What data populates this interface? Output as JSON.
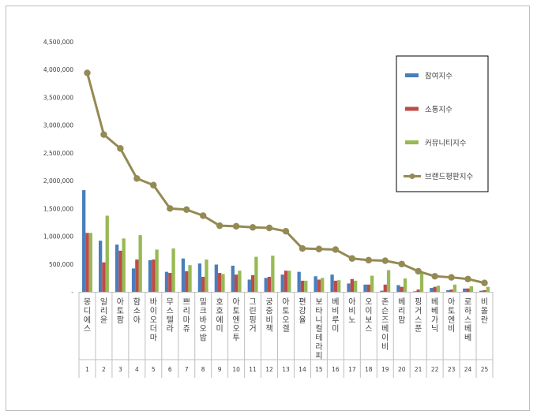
{
  "chart_data": {
    "type": "bar",
    "title": "",
    "xlabel": "",
    "ylabel": "",
    "ylim": [
      0,
      4500000
    ],
    "yticks": [
      0,
      500000,
      1000000,
      1500000,
      2000000,
      2500000,
      3000000,
      3500000,
      4000000,
      4500000
    ],
    "ytick_labels": [
      "-",
      "500,000",
      "1,000,000",
      "1,500,000",
      "2,000,000",
      "2,500,000",
      "3,000,000",
      "3,500,000",
      "4,000,000",
      "4,500,000"
    ],
    "grid": false,
    "legend_position": "top-right",
    "categories": [
      "몽디에스",
      "일리윤",
      "아토팜",
      "함소아",
      "바이오더마",
      "무스텔라",
      "쁘리마쥬",
      "밀크바오밥",
      "호호에미",
      "아토엔오투",
      "그린핑거",
      "궁중비책",
      "아토오겔",
      "편강율",
      "보타니컬테라피",
      "베비루미",
      "아비노",
      "오이보스",
      "존슨즈베이비",
      "베리맘",
      "핑거스푼",
      "베베가닉",
      "아토엔비",
      "로하스베베",
      "비올란"
    ],
    "ranks": [
      "1",
      "2",
      "3",
      "4",
      "5",
      "6",
      "7",
      "8",
      "9",
      "10",
      "11",
      "12",
      "13",
      "14",
      "15",
      "16",
      "17",
      "18",
      "19",
      "20",
      "21",
      "22",
      "23",
      "24",
      "25"
    ],
    "series": [
      {
        "name": "참여지수",
        "type": "bar",
        "color": "#4a7ebb",
        "values": [
          1830000,
          920000,
          850000,
          420000,
          570000,
          360000,
          600000,
          510000,
          490000,
          470000,
          220000,
          250000,
          310000,
          360000,
          280000,
          310000,
          150000,
          130000,
          20000,
          120000,
          10000,
          70000,
          30000,
          60000,
          20000
        ]
      },
      {
        "name": "소통지수",
        "type": "bar",
        "color": "#be4b48",
        "values": [
          1060000,
          530000,
          740000,
          580000,
          580000,
          340000,
          370000,
          270000,
          340000,
          310000,
          300000,
          270000,
          380000,
          200000,
          220000,
          200000,
          230000,
          130000,
          130000,
          90000,
          40000,
          90000,
          40000,
          60000,
          30000
        ]
      },
      {
        "name": "커뮤니티지수",
        "type": "bar",
        "color": "#98b954",
        "values": [
          1060000,
          1370000,
          960000,
          1020000,
          760000,
          780000,
          480000,
          580000,
          320000,
          380000,
          630000,
          650000,
          380000,
          200000,
          250000,
          210000,
          200000,
          290000,
          390000,
          240000,
          330000,
          110000,
          130000,
          100000,
          90000
        ]
      },
      {
        "name": "브랜드평판지수",
        "type": "line",
        "color": "#948a54",
        "values": [
          3940000,
          2830000,
          2580000,
          2040000,
          1920000,
          1500000,
          1480000,
          1370000,
          1190000,
          1180000,
          1160000,
          1150000,
          1090000,
          780000,
          770000,
          760000,
          600000,
          570000,
          560000,
          500000,
          370000,
          280000,
          260000,
          230000,
          160000
        ]
      }
    ]
  }
}
